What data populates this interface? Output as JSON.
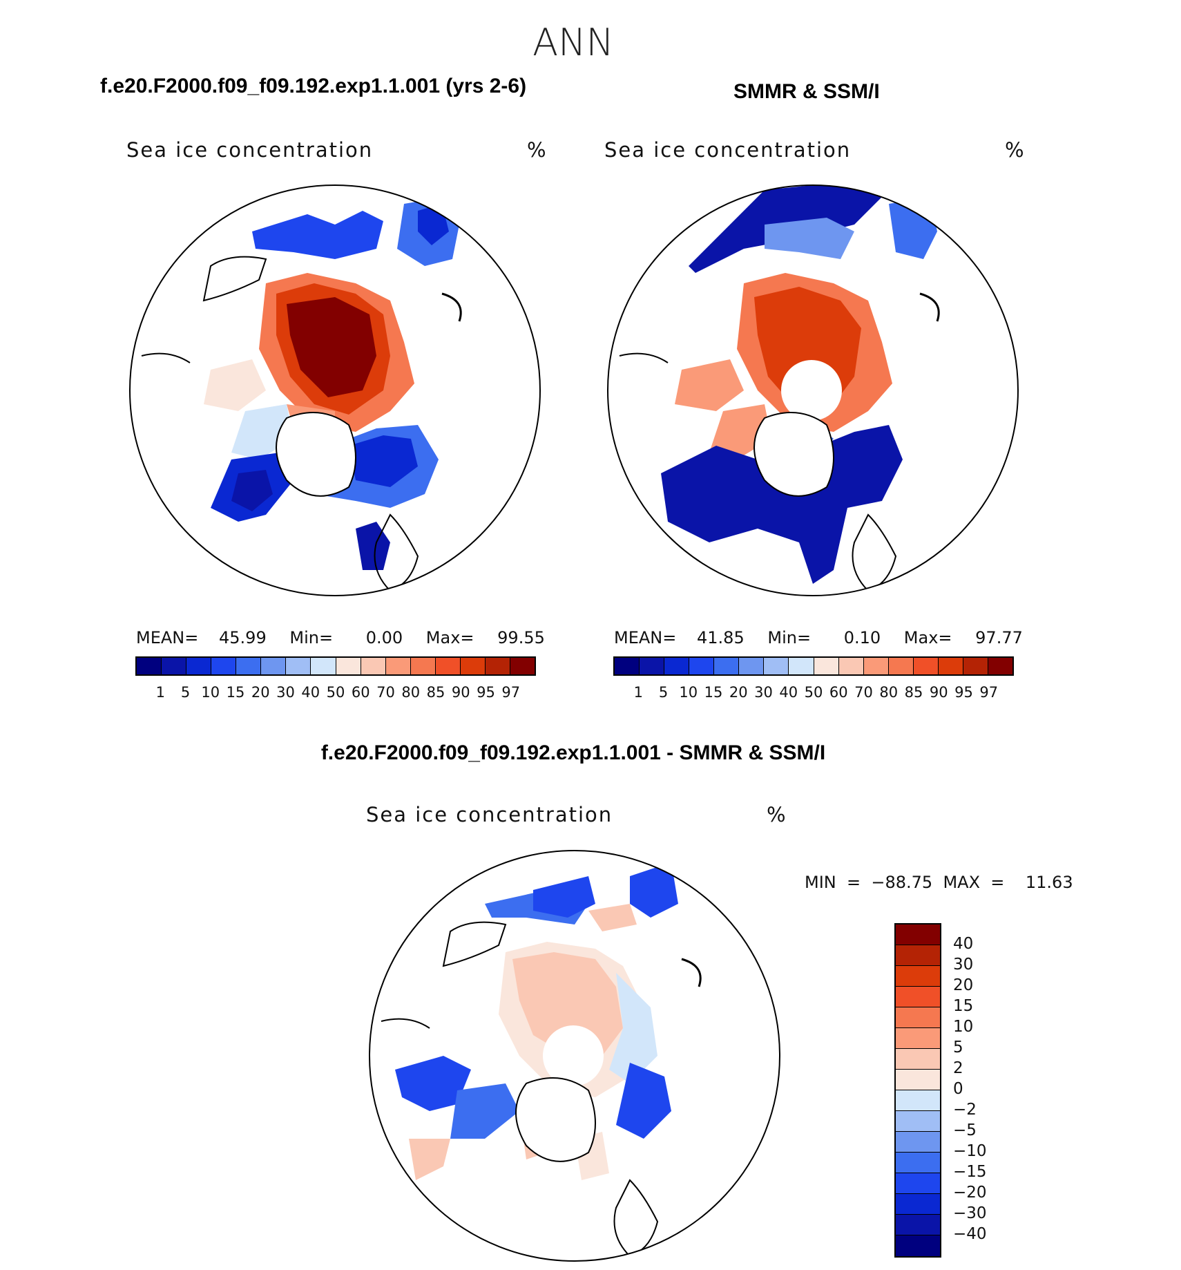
{
  "page_title": "ANN",
  "panels": {
    "model": {
      "title": "f.e20.F2000.f09_f09.192.exp1.1.001 (yrs 2-6)",
      "variable": "Sea ice concentration",
      "units": "%",
      "mean_label": "MEAN=",
      "mean_value": "45.99",
      "min_label": "Min=",
      "min_value": "0.00",
      "max_label": "Max=",
      "max_value": "99.55"
    },
    "obs": {
      "title": "SMMR & SSM/I",
      "variable": "Sea ice concentration",
      "units": "%",
      "mean_label": "MEAN=",
      "mean_value": "41.85",
      "min_label": "Min=",
      "min_value": "0.10",
      "max_label": "Max=",
      "max_value": "97.77"
    },
    "diff": {
      "title": "f.e20.F2000.f09_f09.192.exp1.1.001 - SMMR & SSM/I",
      "variable": "Sea ice concentration",
      "units": "%",
      "minmax": "MIN  =  −88.75  MAX  =    11.63"
    }
  },
  "colorbar_abs": {
    "ticks": [
      "1",
      "5",
      "10",
      "15",
      "20",
      "30",
      "40",
      "50",
      "60",
      "70",
      "80",
      "85",
      "90",
      "95",
      "97"
    ],
    "colors": [
      "#00007f",
      "#0a14a8",
      "#0a28d2",
      "#1e46ee",
      "#3c6ef0",
      "#6e96f0",
      "#a0bef5",
      "#d2e6fa",
      "#fae6dc",
      "#fac8b4",
      "#fa9a78",
      "#f57850",
      "#f05028",
      "#dc3c0a",
      "#b42305",
      "#820000"
    ]
  },
  "colorbar_diff": {
    "ticks": [
      "40",
      "30",
      "20",
      "15",
      "10",
      "5",
      "2",
      "0",
      "−2",
      "−5",
      "−10",
      "−15",
      "−20",
      "−30",
      "−40"
    ],
    "colors": [
      "#820000",
      "#b42305",
      "#dc3c0a",
      "#f05028",
      "#f57850",
      "#fa9a78",
      "#fac8b4",
      "#fae6dc",
      "#d2e6fa",
      "#a0bef5",
      "#6e96f0",
      "#3c6ef0",
      "#1e46ee",
      "#0a28d2",
      "#0a14a8",
      "#00007f"
    ]
  }
}
